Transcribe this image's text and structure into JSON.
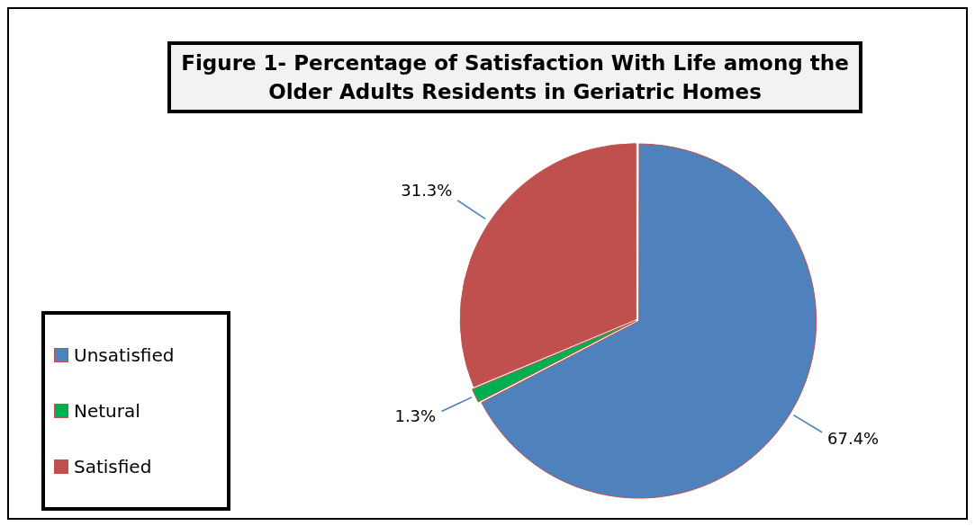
{
  "chart_data": {
    "type": "pie",
    "title": "Figure 1- Percentage of Satisfaction With Life among the Older Adults Residents in Geriatric Homes",
    "categories": [
      "Unsatisfied",
      "Netural",
      "Satisfied"
    ],
    "values": [
      67.4,
      1.3,
      31.3
    ],
    "colors": [
      "#4f81bd",
      "#00b050",
      "#c0504d"
    ],
    "value_labels": [
      "67.4%",
      "1.3%",
      "31.3%"
    ],
    "legend": "bottom left"
  }
}
